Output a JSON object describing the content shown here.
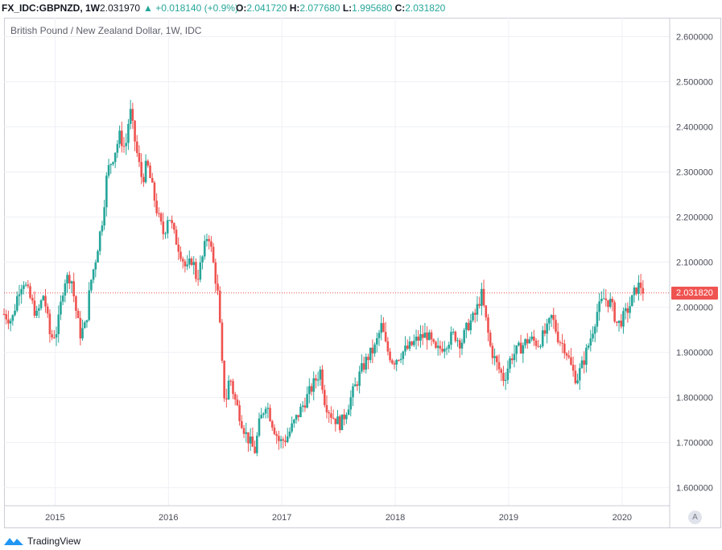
{
  "header": {
    "symbol": "FX_IDC:GBPNZD, 1W",
    "last": "2.031970",
    "change": "▲ +0.018140 (+0.9%)",
    "open_label": "O:",
    "open": "2.041720",
    "high_label": "H:",
    "high": "2.077680",
    "low_label": "L:",
    "low": "1.995680",
    "close_label": "C:",
    "close": "2.031820"
  },
  "legend": {
    "title": "British Pound / New Zealand Dollar, 1W, IDC"
  },
  "price_badge": "2.031820",
  "auto_button": "A",
  "branding": {
    "name": "TradingView"
  },
  "colors": {
    "up": "#26a69a",
    "down": "#ef5350",
    "grid": "#eef0f5",
    "axis_text": "#4a4e59"
  },
  "chart_data": {
    "type": "candlestick",
    "symbol": "GBPNZD",
    "interval": "1W",
    "y_ticks": [
      "1.600000",
      "1.700000",
      "1.800000",
      "1.900000",
      "2.000000",
      "2.100000",
      "2.200000",
      "2.300000",
      "2.400000",
      "2.500000",
      "2.600000"
    ],
    "x_ticks": [
      "2015",
      "2016",
      "2017",
      "2018",
      "2019",
      "2020"
    ],
    "x_range": [
      2014.55,
      2020.42
    ],
    "y_range": [
      1.56,
      2.642
    ],
    "last_price": 2.03182,
    "price_path": [
      [
        2014.55,
        1.985
      ],
      [
        2014.62,
        1.97
      ],
      [
        2014.68,
        2.04
      ],
      [
        2014.72,
        2.06
      ],
      [
        2014.78,
        2.02
      ],
      [
        2014.84,
        1.98
      ],
      [
        2014.9,
        2.03
      ],
      [
        2014.96,
        1.93
      ],
      [
        2015.02,
        1.95
      ],
      [
        2015.08,
        2.06
      ],
      [
        2015.14,
        2.07
      ],
      [
        2015.18,
        2.0
      ],
      [
        2015.22,
        1.94
      ],
      [
        2015.27,
        1.96
      ],
      [
        2015.31,
        2.05
      ],
      [
        2015.36,
        2.11
      ],
      [
        2015.42,
        2.2
      ],
      [
        2015.46,
        2.3
      ],
      [
        2015.52,
        2.34
      ],
      [
        2015.57,
        2.38
      ],
      [
        2015.62,
        2.35
      ],
      [
        2015.66,
        2.44
      ],
      [
        2015.69,
        2.39
      ],
      [
        2015.73,
        2.33
      ],
      [
        2015.77,
        2.28
      ],
      [
        2015.81,
        2.32
      ],
      [
        2015.86,
        2.26
      ],
      [
        2015.91,
        2.2
      ],
      [
        2015.96,
        2.16
      ],
      [
        2016.0,
        2.21
      ],
      [
        2016.05,
        2.16
      ],
      [
        2016.11,
        2.12
      ],
      [
        2016.16,
        2.08
      ],
      [
        2016.21,
        2.11
      ],
      [
        2016.25,
        2.06
      ],
      [
        2016.3,
        2.11
      ],
      [
        2016.35,
        2.17
      ],
      [
        2016.4,
        2.09
      ],
      [
        2016.44,
        2.02
      ],
      [
        2016.47,
        1.88
      ],
      [
        2016.5,
        1.78
      ],
      [
        2016.54,
        1.85
      ],
      [
        2016.58,
        1.8
      ],
      [
        2016.63,
        1.76
      ],
      [
        2016.68,
        1.72
      ],
      [
        2016.72,
        1.7
      ],
      [
        2016.76,
        1.68
      ],
      [
        2016.8,
        1.74
      ],
      [
        2016.86,
        1.79
      ],
      [
        2016.92,
        1.74
      ],
      [
        2016.98,
        1.7
      ],
      [
        2017.04,
        1.71
      ],
      [
        2017.1,
        1.74
      ],
      [
        2017.18,
        1.78
      ],
      [
        2017.26,
        1.82
      ],
      [
        2017.34,
        1.86
      ],
      [
        2017.38,
        1.79
      ],
      [
        2017.44,
        1.76
      ],
      [
        2017.52,
        1.74
      ],
      [
        2017.58,
        1.78
      ],
      [
        2017.64,
        1.82
      ],
      [
        2017.7,
        1.86
      ],
      [
        2017.76,
        1.89
      ],
      [
        2017.82,
        1.91
      ],
      [
        2017.88,
        1.96
      ],
      [
        2017.92,
        1.91
      ],
      [
        2017.98,
        1.88
      ],
      [
        2018.06,
        1.9
      ],
      [
        2018.12,
        1.91
      ],
      [
        2018.2,
        1.93
      ],
      [
        2018.28,
        1.94
      ],
      [
        2018.36,
        1.9
      ],
      [
        2018.44,
        1.92
      ],
      [
        2018.52,
        1.94
      ],
      [
        2018.58,
        1.92
      ],
      [
        2018.64,
        1.96
      ],
      [
        2018.7,
        1.98
      ],
      [
        2018.76,
        2.03
      ],
      [
        2018.8,
        1.97
      ],
      [
        2018.84,
        1.91
      ],
      [
        2018.9,
        1.87
      ],
      [
        2018.96,
        1.84
      ],
      [
        2019.02,
        1.89
      ],
      [
        2019.1,
        1.91
      ],
      [
        2019.18,
        1.93
      ],
      [
        2019.26,
        1.92
      ],
      [
        2019.34,
        1.95
      ],
      [
        2019.38,
        1.98
      ],
      [
        2019.44,
        1.93
      ],
      [
        2019.5,
        1.91
      ],
      [
        2019.56,
        1.86
      ],
      [
        2019.6,
        1.84
      ],
      [
        2019.66,
        1.88
      ],
      [
        2019.72,
        1.93
      ],
      [
        2019.78,
        1.99
      ],
      [
        2019.84,
        2.02
      ],
      [
        2019.9,
        2.01
      ],
      [
        2019.96,
        1.96
      ],
      [
        2020.02,
        1.98
      ],
      [
        2020.08,
        2.01
      ],
      [
        2020.12,
        2.04
      ],
      [
        2020.16,
        2.05
      ],
      [
        2020.2,
        2.03
      ]
    ]
  }
}
